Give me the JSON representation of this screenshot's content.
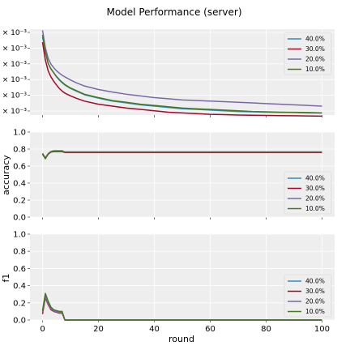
{
  "colors": {
    "background": "#ffffff",
    "panel": "#eeeeee",
    "grid": "#dcdcdc",
    "series": [
      "#348ABD",
      "#A60628",
      "#7A68A6",
      "#467821"
    ]
  },
  "chart_data": [
    {
      "type": "line",
      "title": "Model Performance (server)",
      "ylabel": "",
      "xlabel": "",
      "yscale": "log",
      "ylim": [
        0.00096,
        0.00325
      ],
      "y_tick_labels": [
        "× 10⁻³",
        "× 10⁻³",
        "× 10⁻³",
        "× 10⁻³",
        "× 10⁻³",
        "× 10⁻³"
      ],
      "x_tick_labels": [],
      "grid": true,
      "legend": "right",
      "x": [
        0,
        1,
        2,
        3,
        4,
        5,
        6,
        7,
        8,
        10,
        12,
        15,
        20,
        25,
        30,
        35,
        40,
        45,
        50,
        55,
        60,
        65,
        70,
        75,
        80,
        85,
        90,
        95,
        100
      ],
      "series": [
        {
          "name": "40.0%",
          "values": [
            0.0029,
            0.0024,
            0.002,
            0.00185,
            0.00175,
            0.00165,
            0.00158,
            0.00152,
            0.00147,
            0.0014,
            0.00135,
            0.00128,
            0.00122,
            0.00117,
            0.00114,
            0.00111,
            0.00109,
            0.00107,
            0.00105,
            0.00104,
            0.00103,
            0.00102,
            0.00101,
            0.001005,
            0.001,
            0.000998,
            0.000995,
            0.00099,
            0.000988
          ]
        },
        {
          "name": "30.0%",
          "values": [
            0.0027,
            0.0021,
            0.0018,
            0.00165,
            0.00155,
            0.00147,
            0.0014,
            0.00135,
            0.00131,
            0.00126,
            0.00122,
            0.00117,
            0.00112,
            0.00109,
            0.00106,
            0.00104,
            0.00102,
            0.001,
            0.00099,
            0.00098,
            0.00097,
            0.000965,
            0.00096,
            0.000957,
            0.000955,
            0.000952,
            0.00095,
            0.000948,
            0.000945
          ]
        },
        {
          "name": "20.0%",
          "values": [
            0.0032,
            0.0025,
            0.00215,
            0.00198,
            0.00188,
            0.0018,
            0.00174,
            0.00169,
            0.00165,
            0.00158,
            0.00152,
            0.00145,
            0.00138,
            0.00133,
            0.00129,
            0.00126,
            0.00123,
            0.00121,
            0.00119,
            0.00118,
            0.00117,
            0.00116,
            0.00115,
            0.00114,
            0.00113,
            0.00112,
            0.00111,
            0.0011,
            0.00109
          ]
        },
        {
          "name": "10.0%",
          "values": [
            0.003,
            0.00235,
            0.002,
            0.00185,
            0.00175,
            0.00166,
            0.00159,
            0.00153,
            0.00148,
            0.00141,
            0.00136,
            0.00129,
            0.00123,
            0.00118,
            0.00115,
            0.00112,
            0.0011,
            0.00108,
            0.00106,
            0.00105,
            0.00104,
            0.00103,
            0.00102,
            0.00101,
            0.001005,
            0.001,
            0.000998,
            0.000995,
            0.00099
          ]
        }
      ]
    },
    {
      "type": "line",
      "title": "",
      "ylabel": "accuracy",
      "xlabel": "",
      "ylim": [
        0.0,
        1.0
      ],
      "y_ticks": [
        0.0,
        0.2,
        0.4,
        0.6,
        0.8,
        1.0
      ],
      "y_tick_labels": [
        "0.0",
        "0.2",
        "0.4",
        "0.6",
        "0.8",
        "1.0"
      ],
      "x_tick_labels": [],
      "grid": true,
      "legend": "lower right",
      "x": [
        0,
        1,
        2,
        3,
        4,
        5,
        6,
        7,
        8,
        10,
        15,
        20,
        30,
        40,
        50,
        60,
        70,
        80,
        90,
        100
      ],
      "series": [
        {
          "name": "40.0%",
          "values": [
            0.74,
            0.69,
            0.74,
            0.765,
            0.77,
            0.77,
            0.77,
            0.77,
            0.76,
            0.76,
            0.76,
            0.76,
            0.76,
            0.76,
            0.76,
            0.76,
            0.76,
            0.76,
            0.76,
            0.76
          ]
        },
        {
          "name": "30.0%",
          "values": [
            0.74,
            0.69,
            0.74,
            0.765,
            0.77,
            0.77,
            0.77,
            0.77,
            0.76,
            0.76,
            0.76,
            0.76,
            0.76,
            0.76,
            0.76,
            0.76,
            0.76,
            0.76,
            0.76,
            0.76
          ]
        },
        {
          "name": "20.0%",
          "values": [
            0.745,
            0.7,
            0.745,
            0.77,
            0.775,
            0.775,
            0.775,
            0.775,
            0.765,
            0.765,
            0.765,
            0.765,
            0.765,
            0.765,
            0.765,
            0.765,
            0.765,
            0.765,
            0.765,
            0.765
          ]
        },
        {
          "name": "10.0%",
          "values": [
            0.75,
            0.685,
            0.745,
            0.77,
            0.78,
            0.78,
            0.78,
            0.78,
            0.765,
            0.765,
            0.765,
            0.765,
            0.765,
            0.765,
            0.765,
            0.765,
            0.765,
            0.765,
            0.765,
            0.765
          ]
        }
      ]
    },
    {
      "type": "line",
      "title": "",
      "ylabel": "f1",
      "xlabel": "round",
      "ylim": [
        0.0,
        1.0
      ],
      "y_ticks": [
        0.0,
        0.2,
        0.4,
        0.6,
        0.8,
        1.0
      ],
      "y_tick_labels": [
        "0.0",
        "0.2",
        "0.4",
        "0.6",
        "0.8",
        "1.0"
      ],
      "x_ticks": [
        0,
        20,
        40,
        60,
        80,
        100
      ],
      "x_tick_labels": [
        "0",
        "20",
        "40",
        "60",
        "80",
        "100"
      ],
      "xlim": [
        -4.5,
        104.5
      ],
      "grid": true,
      "legend": "lower right",
      "x": [
        0,
        1,
        2,
        3,
        4,
        5,
        6,
        7,
        8,
        10,
        20,
        40,
        60,
        80,
        100
      ],
      "series": [
        {
          "name": "40.0%",
          "values": [
            0.1,
            0.28,
            0.2,
            0.14,
            0.11,
            0.1,
            0.09,
            0.09,
            0.0,
            0.0,
            0.0,
            0.0,
            0.0,
            0.0,
            0.0
          ]
        },
        {
          "name": "30.0%",
          "values": [
            0.07,
            0.26,
            0.18,
            0.12,
            0.1,
            0.09,
            0.08,
            0.08,
            0.0,
            0.0,
            0.0,
            0.0,
            0.0,
            0.0,
            0.0
          ]
        },
        {
          "name": "20.0%",
          "values": [
            0.09,
            0.27,
            0.19,
            0.13,
            0.105,
            0.095,
            0.085,
            0.085,
            0.0,
            0.0,
            0.0,
            0.0,
            0.0,
            0.0,
            0.0
          ]
        },
        {
          "name": "10.0%",
          "values": [
            0.11,
            0.31,
            0.22,
            0.15,
            0.12,
            0.11,
            0.1,
            0.1,
            0.0,
            0.0,
            0.0,
            0.0,
            0.0,
            0.0,
            0.0
          ]
        }
      ]
    }
  ]
}
